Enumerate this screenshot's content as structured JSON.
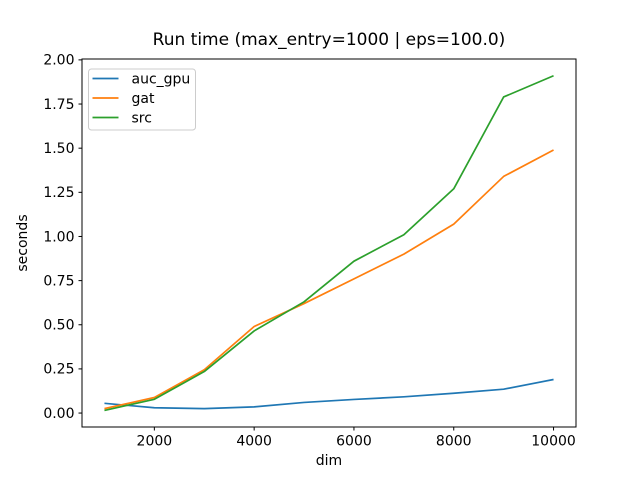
{
  "figure": {
    "title": "Run time (max_entry=1000 | eps=100.0)",
    "xlabel": "dim",
    "ylabel": "seconds"
  },
  "chart_data": {
    "type": "line",
    "title": "Run time (max_entry=1000 | eps=100.0)",
    "xlabel": "dim",
    "ylabel": "seconds",
    "x": [
      1000,
      2000,
      3000,
      4000,
      5000,
      6000,
      7000,
      8000,
      9000,
      10000
    ],
    "series": [
      {
        "name": "auc_gpu",
        "color": "#1f77b4",
        "values": [
          0.055,
          0.03,
          0.025,
          0.035,
          0.06,
          0.077,
          0.092,
          0.112,
          0.135,
          0.19
        ]
      },
      {
        "name": "gat",
        "color": "#ff7f0e",
        "values": [
          0.025,
          0.088,
          0.245,
          0.49,
          0.62,
          0.76,
          0.9,
          1.07,
          1.34,
          1.49
        ]
      },
      {
        "name": "src",
        "color": "#2ca02c",
        "values": [
          0.015,
          0.078,
          0.235,
          0.465,
          0.63,
          0.86,
          1.01,
          1.27,
          1.79,
          1.91
        ]
      }
    ],
    "xlim": [
      550,
      10450
    ],
    "ylim": [
      -0.079,
      2.005
    ],
    "xticks": [
      2000,
      4000,
      6000,
      8000,
      10000
    ],
    "xtick_labels": [
      "2000",
      "4000",
      "6000",
      "8000",
      "10000"
    ],
    "yticks": [
      0.0,
      0.25,
      0.5,
      0.75,
      1.0,
      1.25,
      1.5,
      1.75,
      2.0
    ],
    "ytick_labels": [
      "0.00",
      "0.25",
      "0.50",
      "0.75",
      "1.00",
      "1.25",
      "1.50",
      "1.75",
      "2.00"
    ],
    "grid": false,
    "legend": {
      "position": "upper left",
      "entries": [
        "auc_gpu",
        "gat",
        "src"
      ]
    },
    "line_width": 1.7
  }
}
